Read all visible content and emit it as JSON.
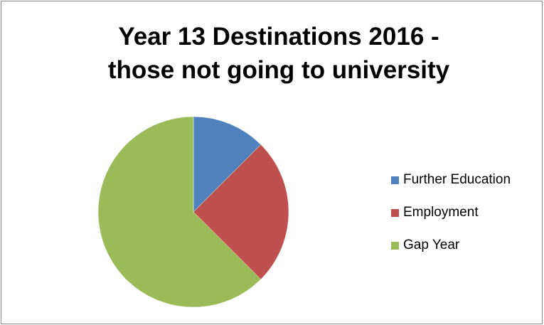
{
  "chart_data": {
    "type": "pie",
    "title_lines": [
      "Year 13 Destinations 2016 -",
      "those not going to university"
    ],
    "categories": [
      "Further Education",
      "Employment",
      "Gap Year"
    ],
    "values": [
      12.5,
      25,
      62.5
    ],
    "colors": [
      "#4f81bd",
      "#c0504d",
      "#9bbb59"
    ],
    "legend_position": "right",
    "start_angle": "top",
    "direction": "clockwise"
  }
}
